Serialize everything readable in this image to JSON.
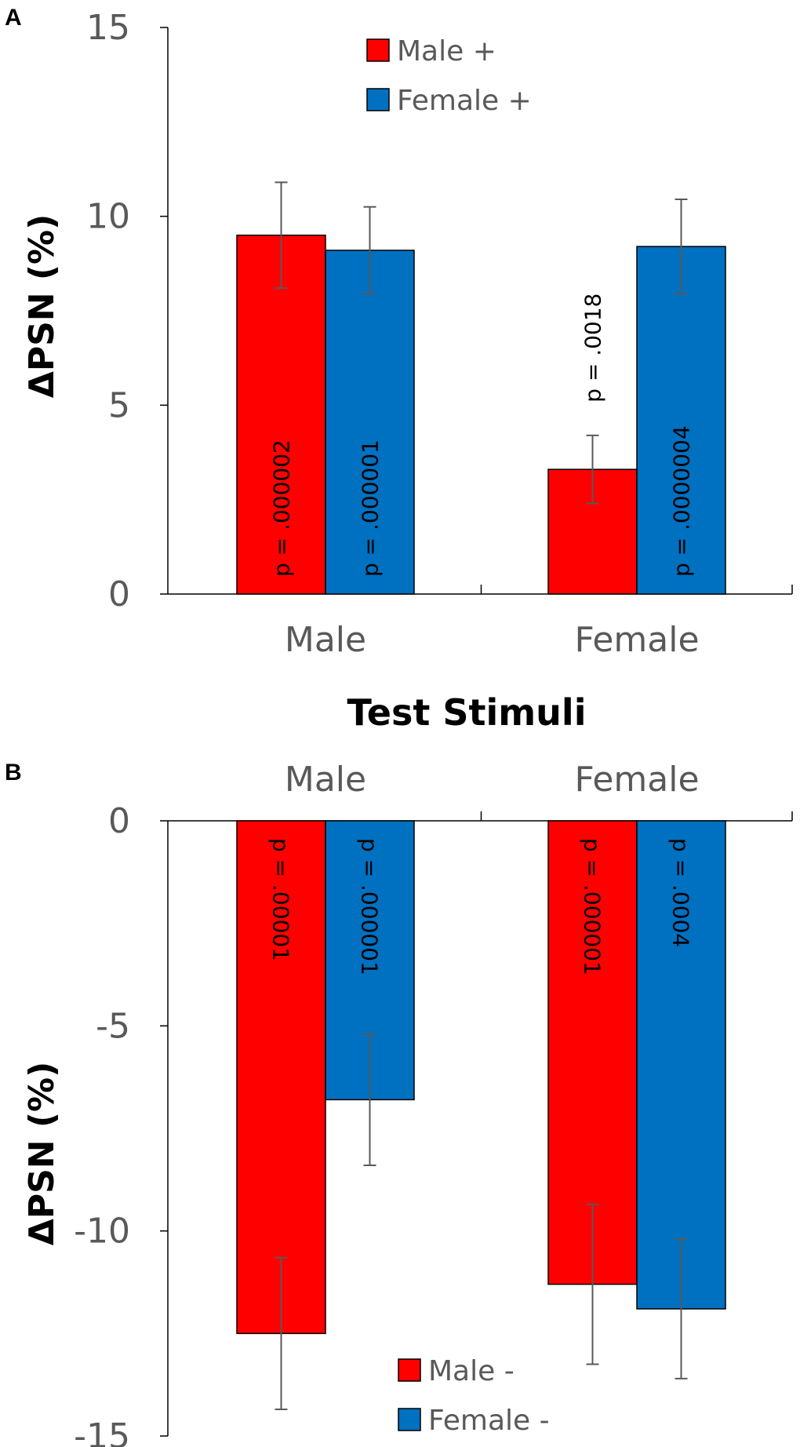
{
  "colors": {
    "male": "#ff0000",
    "female": "#0070c0",
    "axis": "#000000",
    "tick_text": "#595959",
    "error_bar": "#595959"
  },
  "chart_data": [
    {
      "panel": "A",
      "type": "bar",
      "categories": [
        "Male",
        "Female"
      ],
      "series": [
        {
          "name": "Male +",
          "values": [
            9.5,
            3.3
          ],
          "errors": [
            1.4,
            0.9
          ]
        },
        {
          "name": "Female +",
          "values": [
            9.1,
            9.2
          ],
          "errors": [
            1.15,
            1.25
          ]
        }
      ],
      "p_values": [
        {
          "category": "Male",
          "series": "Male +",
          "text": "p = .000002"
        },
        {
          "category": "Male",
          "series": "Female +",
          "text": "p = .000001"
        },
        {
          "category": "Female",
          "series": "Male +",
          "text": "p = .0018"
        },
        {
          "category": "Female",
          "series": "Female +",
          "text": "p = .0000004"
        }
      ],
      "ylabel": "ΔPSN (%)",
      "xlabel": "Test Stimuli",
      "ylim": [
        0,
        15
      ],
      "yticks": [
        0,
        5,
        10,
        15
      ],
      "legend_position": "top-center",
      "grid": false
    },
    {
      "panel": "B",
      "type": "bar",
      "categories": [
        "Male",
        "Female"
      ],
      "series": [
        {
          "name": "Male -",
          "values": [
            -12.5,
            -11.3
          ],
          "errors": [
            1.85,
            1.95
          ]
        },
        {
          "name": "Female -",
          "values": [
            -6.8,
            -11.9
          ],
          "errors": [
            1.6,
            1.7
          ]
        }
      ],
      "p_values": [
        {
          "category": "Male",
          "series": "Male -",
          "text": "p = .00001"
        },
        {
          "category": "Male",
          "series": "Female -",
          "text": "p = .000001"
        },
        {
          "category": "Female",
          "series": "Male -",
          "text": "p = .000001"
        },
        {
          "category": "Female",
          "series": "Female -",
          "text": "p = .0004"
        }
      ],
      "ylabel": "ΔPSN (%)",
      "xlabel": "",
      "ylim": [
        -15,
        0
      ],
      "yticks": [
        0,
        -5,
        -10,
        -15
      ],
      "legend_position": "bottom-center",
      "grid": false
    }
  ]
}
